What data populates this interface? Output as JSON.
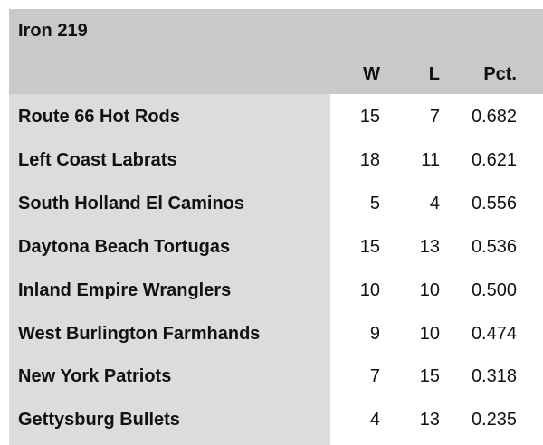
{
  "table": {
    "title": "Iron 219",
    "columns": [
      "W",
      "L",
      "Pct."
    ],
    "rows": [
      [
        "Route 66 Hot Rods",
        "15",
        "7",
        "0.682"
      ],
      [
        "Left Coast Labrats",
        "18",
        "11",
        "0.621"
      ],
      [
        "South Holland El Caminos",
        "5",
        "4",
        "0.556"
      ],
      [
        "Daytona Beach Tortugas",
        "15",
        "13",
        "0.536"
      ],
      [
        "Inland Empire Wranglers",
        "10",
        "10",
        "0.500"
      ],
      [
        "West Burlington Farmhands",
        "9",
        "10",
        "0.474"
      ],
      [
        "New York Patriots",
        "7",
        "15",
        "0.318"
      ],
      [
        "Gettysburg Bullets",
        "4",
        "13",
        "0.235"
      ]
    ]
  }
}
